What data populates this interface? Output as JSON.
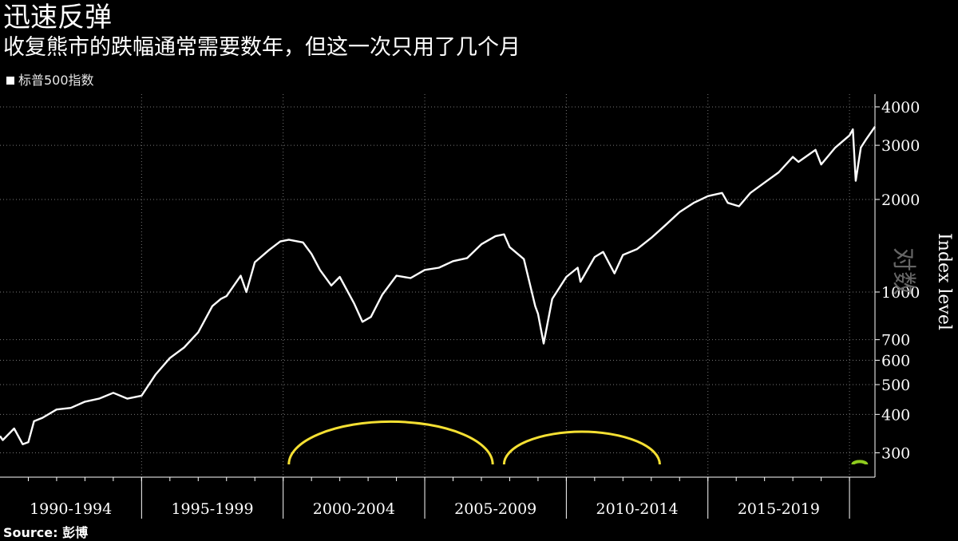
{
  "chart_data": {
    "type": "line",
    "title": "迅速反弹",
    "subtitle": "收复熊市的跌幅通常需要数年，但这一次只用了几个月",
    "legend": [
      {
        "name": "标普500指数",
        "color": "#ffffff"
      }
    ],
    "source": "Source: 彭博",
    "ylabel": "Index level",
    "yscale_label": "对数",
    "y_scale": "log",
    "ylim": [
      250,
      4400
    ],
    "xlim": [
      1990.0,
      2020.9
    ],
    "grid": true,
    "yticks": [
      300,
      400,
      500,
      600,
      700,
      1000,
      2000,
      3000,
      4000
    ],
    "period_labels": [
      "1990-1994",
      "1995-1999",
      "2000-2004",
      "2005-2009",
      "2010-2014",
      "2015-2019"
    ],
    "series": [
      {
        "name": "标普500指数",
        "color": "#ffffff",
        "x": [
          1990.0,
          1990.1,
          1990.5,
          1990.8,
          1991.0,
          1991.2,
          1991.5,
          1992.0,
          1992.5,
          1993.0,
          1993.5,
          1994.0,
          1994.5,
          1995.0,
          1995.5,
          1996.0,
          1996.5,
          1997.0,
          1997.5,
          1997.8,
          1998.0,
          1998.5,
          1998.7,
          1999.0,
          1999.5,
          1999.9,
          2000.2,
          2000.7,
          2001.0,
          2001.3,
          2001.7,
          2002.0,
          2002.5,
          2002.8,
          2003.1,
          2003.5,
          2004.0,
          2004.5,
          2005.0,
          2005.5,
          2006.0,
          2006.5,
          2007.0,
          2007.5,
          2007.8,
          2008.0,
          2008.5,
          2008.9,
          2009.0,
          2009.2,
          2009.5,
          2010.0,
          2010.4,
          2010.5,
          2011.0,
          2011.3,
          2011.7,
          2012.0,
          2012.5,
          2013.0,
          2013.5,
          2014.0,
          2014.5,
          2015.0,
          2015.5,
          2015.7,
          2016.1,
          2016.5,
          2017.0,
          2017.5,
          2018.0,
          2018.2,
          2018.8,
          2019.0,
          2019.5,
          2020.0,
          2020.12,
          2020.22,
          2020.4,
          2020.6,
          2020.9
        ],
        "y": [
          340,
          330,
          360,
          320,
          325,
          380,
          390,
          415,
          420,
          440,
          450,
          470,
          450,
          460,
          540,
          610,
          660,
          740,
          900,
          950,
          970,
          1130,
          1000,
          1250,
          1370,
          1460,
          1480,
          1450,
          1330,
          1180,
          1050,
          1120,
          920,
          800,
          830,
          980,
          1130,
          1110,
          1180,
          1200,
          1260,
          1290,
          1430,
          1520,
          1540,
          1400,
          1280,
          900,
          850,
          680,
          950,
          1120,
          1200,
          1080,
          1300,
          1350,
          1150,
          1320,
          1380,
          1500,
          1650,
          1820,
          1950,
          2050,
          2100,
          1950,
          1900,
          2100,
          2270,
          2450,
          2750,
          2650,
          2900,
          2600,
          2950,
          3230,
          3380,
          2300,
          2950,
          3150,
          3450
        ]
      }
    ],
    "annotations": [
      {
        "type": "arc",
        "x_start": 2000.2,
        "x_end": 2007.4,
        "color": "#f5e033",
        "label": ""
      },
      {
        "type": "arc",
        "x_start": 2007.8,
        "x_end": 2013.3,
        "color": "#f5e033",
        "label": ""
      },
      {
        "type": "arc",
        "x_start": 2020.12,
        "x_end": 2020.6,
        "color": "#8fcc1e",
        "label": ""
      }
    ]
  }
}
